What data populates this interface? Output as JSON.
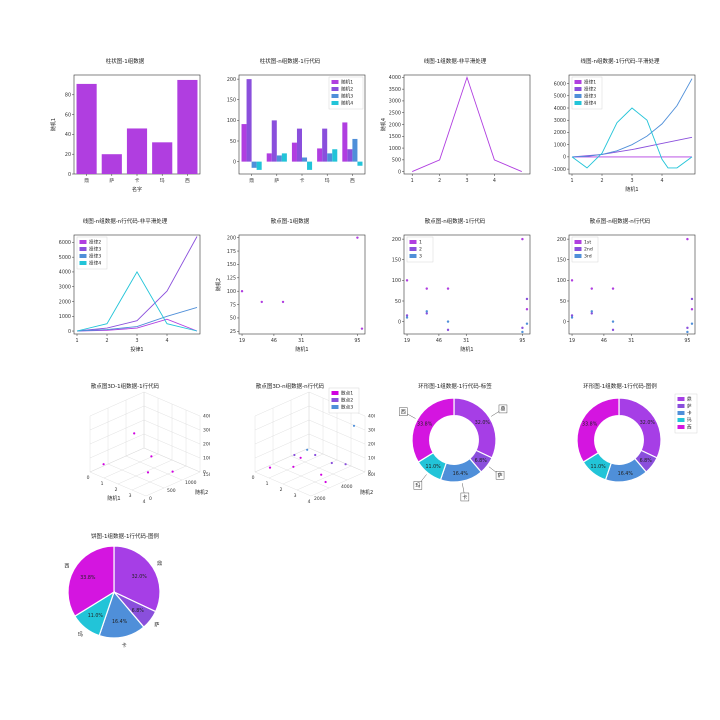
{
  "chart_data": [
    {
      "id": "c1",
      "type": "bar",
      "title": "柱状图-1组数据",
      "xlabel": "名字",
      "ylabel": "随机1",
      "categories": [
        "鼎",
        "萨",
        "卡",
        "玛",
        "西"
      ],
      "series": [
        {
          "values": [
            91,
            20,
            46,
            32,
            95
          ],
          "color": "#b03ee0"
        }
      ],
      "ylim": [
        0,
        100
      ],
      "yticks": [
        0,
        20,
        40,
        60,
        80
      ]
    },
    {
      "id": "c2",
      "type": "bar",
      "title": "柱状图-n组数据-1行代码",
      "categories": [
        "鼎",
        "萨",
        "卡",
        "玛",
        "西"
      ],
      "legend": "top-right",
      "ylim": [
        -30,
        210
      ],
      "yticks": [
        0,
        50,
        100,
        150,
        200
      ],
      "series": [
        {
          "name": "随机1",
          "values": [
            91,
            20,
            46,
            32,
            95
          ],
          "color": "#b03ee0"
        },
        {
          "name": "随机2",
          "values": [
            200,
            100,
            80,
            80,
            30
          ],
          "color": "#8a4fdc"
        },
        {
          "name": "随机3",
          "values": [
            -15,
            15,
            10,
            20,
            55
          ],
          "color": "#4f8fd9"
        },
        {
          "name": "随机4",
          "values": [
            -20,
            20,
            -20,
            30,
            -10
          ],
          "color": "#22c4d8"
        }
      ]
    },
    {
      "id": "c3",
      "type": "line",
      "title": "线图-1组数据-非平滑处理",
      "ylabel": "随机4",
      "x": [
        1,
        2,
        3,
        4,
        5
      ],
      "xticks": [
        1,
        2,
        3,
        4
      ],
      "ylim": [
        -100,
        4100
      ],
      "yticks": [
        0,
        500,
        1000,
        1500,
        2000,
        2500,
        3000,
        3500,
        4000
      ],
      "series": [
        {
          "values": [
            0,
            500,
            4000,
            500,
            0
          ],
          "color": "#b03ee0"
        }
      ]
    },
    {
      "id": "c4",
      "type": "line",
      "title": "线图-n组数据-1行代码-平滑处理",
      "xlabel": "随机1",
      "legend": "top-left",
      "xlim": [
        1,
        5
      ],
      "xticks": [
        1,
        2,
        3,
        4
      ],
      "ylim": [
        -1400,
        6700
      ],
      "yticks": [
        -1000,
        0,
        1000,
        2000,
        3000,
        4000,
        5000,
        6000
      ],
      "series": [
        {
          "name": "投律1",
          "x": [
            1,
            1.5,
            2,
            2.5,
            3,
            3.5,
            4,
            4.5,
            5
          ],
          "values": [
            0,
            0,
            0,
            0,
            0,
            0,
            0,
            0,
            0
          ],
          "color": "#b03ee0"
        },
        {
          "name": "投律2",
          "x": [
            1,
            2,
            3,
            4,
            5
          ],
          "values": [
            0,
            200,
            600,
            1100,
            1600
          ],
          "color": "#8a4fdc"
        },
        {
          "name": "投律3",
          "x": [
            1,
            1.5,
            2,
            2.5,
            3,
            3.5,
            4,
            4.5,
            5
          ],
          "values": [
            0,
            50,
            200,
            500,
            1000,
            1700,
            2700,
            4200,
            6400
          ],
          "color": "#4f8fd9"
        },
        {
          "name": "投律4",
          "x": [
            1,
            1.5,
            2,
            2.5,
            3,
            3.5,
            4,
            4.2,
            4.5,
            5
          ],
          "values": [
            0,
            -900,
            300,
            2800,
            4000,
            3000,
            -200,
            -900,
            -900,
            0
          ],
          "color": "#22c4d8"
        }
      ]
    },
    {
      "id": "c5",
      "type": "line",
      "title": "线图-n组数据-n行代码-非平滑处理",
      "xlabel": "投律1",
      "legend": "top-left",
      "xlim": [
        1,
        5
      ],
      "xticks": [
        1,
        2,
        3,
        4
      ],
      "ylim": [
        -200,
        6500
      ],
      "yticks": [
        0,
        1000,
        2000,
        3000,
        4000,
        5000,
        6000
      ],
      "series": [
        {
          "name": "投律2",
          "x": [
            1,
            2,
            3,
            4,
            5
          ],
          "values": [
            0,
            50,
            200,
            800,
            0
          ],
          "color": "#b03ee0"
        },
        {
          "name": "投律3",
          "x": [
            1,
            2,
            3,
            4,
            5
          ],
          "values": [
            0,
            200,
            700,
            2700,
            6400
          ],
          "color": "#8a4fdc"
        },
        {
          "name": "投律3",
          "x": [
            1,
            2,
            3,
            4,
            5
          ],
          "values": [
            0,
            100,
            300,
            1000,
            1600
          ],
          "color": "#4f8fd9"
        },
        {
          "name": "投律4",
          "x": [
            1,
            2,
            3,
            4,
            5
          ],
          "values": [
            0,
            500,
            4000,
            500,
            0
          ],
          "color": "#22c4d8"
        }
      ]
    },
    {
      "id": "c6",
      "type": "scatter",
      "title": "散点图-1组数据",
      "xlabel": "随机1",
      "ylabel": "随机2",
      "xlim": [
        17,
        100
      ],
      "xticks": [
        "19",
        "46",
        "31",
        "95"
      ],
      "ylim": [
        20,
        205
      ],
      "yticks": [
        25,
        50,
        75,
        100,
        125,
        150,
        175,
        200
      ],
      "series": [
        {
          "x": [
            19,
            32,
            46,
            95,
            98
          ],
          "values": [
            100,
            80,
            80,
            200,
            30
          ],
          "color": "#b03ee0"
        }
      ]
    },
    {
      "id": "c7",
      "type": "scatter",
      "title": "散点图-n组数据-1行代码",
      "xlabel": "随机1",
      "legend": "top-left",
      "xlim": [
        17,
        100
      ],
      "xticks": [
        "19",
        "46",
        "31",
        "95"
      ],
      "ylim": [
        -30,
        210
      ],
      "yticks": [
        0,
        50,
        100,
        150,
        200
      ],
      "series": [
        {
          "name": "1",
          "x": [
            19,
            32,
            46,
            95,
            98
          ],
          "values": [
            100,
            80,
            80,
            200,
            30
          ],
          "color": "#b03ee0"
        },
        {
          "name": "2",
          "x": [
            19,
            32,
            46,
            95,
            98
          ],
          "values": [
            15,
            20,
            -20,
            -15,
            55
          ],
          "color": "#8a4fdc"
        },
        {
          "name": "3",
          "x": [
            19,
            32,
            46,
            95,
            98
          ],
          "values": [
            10,
            25,
            0,
            -25,
            -5
          ],
          "color": "#4f8fd9"
        }
      ]
    },
    {
      "id": "c8",
      "type": "scatter",
      "title": "散点图-n组数据-n行代码",
      "legend": "top-left",
      "xlim": [
        17,
        100
      ],
      "xticks": [
        "19",
        "46",
        "31",
        "95"
      ],
      "ylim": [
        -30,
        210
      ],
      "yticks": [
        0,
        50,
        100,
        150,
        200
      ],
      "series": [
        {
          "name": "1st",
          "x": [
            19,
            32,
            46,
            95,
            98
          ],
          "values": [
            100,
            80,
            80,
            200,
            30
          ],
          "color": "#b03ee0"
        },
        {
          "name": "2nd",
          "x": [
            19,
            32,
            46,
            95,
            98
          ],
          "values": [
            15,
            20,
            -20,
            -15,
            55
          ],
          "color": "#8a4fdc"
        },
        {
          "name": "3rd",
          "x": [
            19,
            32,
            46,
            95,
            98
          ],
          "values": [
            10,
            25,
            0,
            -25,
            -5
          ],
          "color": "#4f8fd9"
        }
      ]
    },
    {
      "id": "c9",
      "type": "scatter3d",
      "title": "散点图3D-1组数据-1行代码",
      "xlabel": "随机1",
      "ylabel": "随机2",
      "zlabel": "随机4",
      "xticks": [
        "0",
        "1",
        "2",
        "3",
        "4"
      ],
      "yticks": [
        "0",
        "500",
        "1000",
        "1500"
      ],
      "zticks": [
        "0",
        "1000",
        "2000",
        "3000",
        "4000"
      ],
      "points": [
        [
          0.2,
          0.2,
          300
        ],
        [
          1.3,
          0.8,
          300
        ],
        [
          2.0,
          0.3,
          3100
        ],
        [
          3.2,
          0.7,
          200
        ],
        [
          2.6,
          0.4,
          400
        ]
      ],
      "color": "#d000e0"
    },
    {
      "id": "c10",
      "type": "scatter3d",
      "title": "散点图3D-n组数据-n行代码",
      "ylabel": "随机2",
      "legend": "top-right",
      "xticks": [
        "0",
        "1",
        "2",
        "3",
        "4"
      ],
      "yticks": [
        "2000",
        "4000",
        "6000"
      ],
      "zticks": [
        "0",
        "1000",
        "2000",
        "3000",
        "4000"
      ],
      "series": [
        {
          "name": "散点1",
          "color": "#d000e0",
          "points": [
            [
              0.3,
              0.2,
              100
            ],
            [
              1.2,
              0.4,
              200
            ],
            [
              2.1,
              0.3,
              1400
            ],
            [
              2.8,
              0.5,
              150
            ],
            [
              3.5,
              0.4,
              100
            ]
          ]
        },
        {
          "name": "散点2",
          "color": "#8a4fdc",
          "points": [
            [
              0.5,
              0.6,
              400
            ],
            [
              1.6,
              0.7,
              700
            ],
            [
              2.4,
              0.8,
              300
            ],
            [
              3.0,
              0.9,
              300
            ]
          ]
        },
        {
          "name": "散点3",
          "color": "#4f8fd9",
          "points": [
            [
              3.6,
              0.9,
              3300
            ],
            [
              1.8,
              0.5,
              1500
            ]
          ]
        }
      ]
    },
    {
      "id": "c11",
      "type": "pie",
      "donut": true,
      "title": "环形图-1组数据-1行代码-标签",
      "labels": [
        "鼎",
        "萨",
        "卡",
        "玛",
        "西"
      ],
      "values": [
        32.0,
        6.8,
        16.4,
        11.0,
        33.8
      ],
      "pct_labels": [
        "32.0%",
        "6.8%",
        "16.4%",
        "11.0%",
        "33.8%"
      ],
      "colors": [
        "#a63ee6",
        "#8a4fdc",
        "#4f8fd9",
        "#22c4d8",
        "#d415e0"
      ]
    },
    {
      "id": "c12",
      "type": "pie",
      "donut": true,
      "title": "环形图-1组数据-1行代码-图例",
      "legend": "top-right",
      "labels": [
        "鼎",
        "萨",
        "卡",
        "玛",
        "西"
      ],
      "values": [
        32.0,
        6.8,
        16.4,
        11.0,
        33.8
      ],
      "pct_labels": [
        "32.0%",
        "6.8%",
        "16.4%",
        "11.0%",
        "33.8%"
      ],
      "colors": [
        "#a63ee6",
        "#8a4fdc",
        "#4f8fd9",
        "#22c4d8",
        "#d415e0"
      ]
    },
    {
      "id": "c13",
      "type": "pie",
      "title": "饼图-1组数据-1行代码-图例",
      "labels": [
        "鼎",
        "萨",
        "卡",
        "玛",
        "西"
      ],
      "values": [
        32.0,
        6.8,
        16.4,
        11.0,
        33.8
      ],
      "pct_labels": [
        "32.0%",
        "6.8%",
        "16.4%",
        "11.0%",
        "33.8%"
      ],
      "colors": [
        "#a63ee6",
        "#8a4fdc",
        "#4f8fd9",
        "#22c4d8",
        "#d415e0"
      ]
    }
  ]
}
